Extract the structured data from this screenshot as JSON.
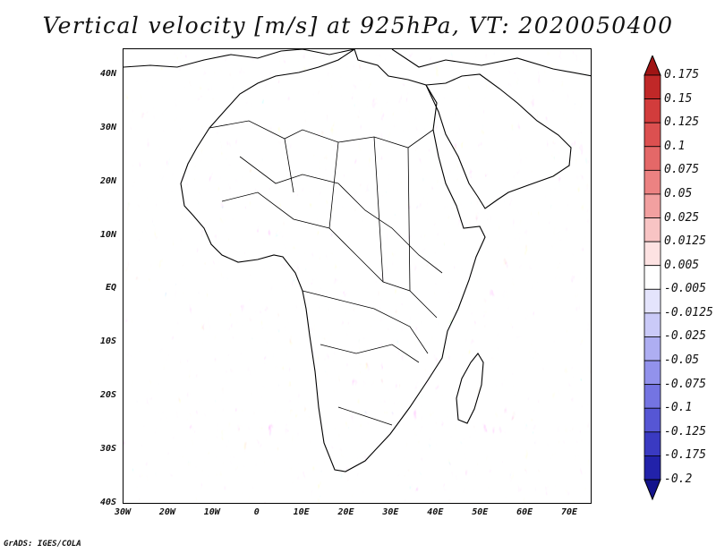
{
  "title": "Vertical velocity [m/s] at 925hPa, VT: 2020050400",
  "credit": "GrADS: IGES/COLA",
  "map": {
    "projection": "lat-lon",
    "lon_range": [
      -30,
      75
    ],
    "lat_range": [
      -40,
      45
    ],
    "lat_ticks": [
      {
        "value": 40,
        "label": "40N"
      },
      {
        "value": 30,
        "label": "30N"
      },
      {
        "value": 20,
        "label": "20N"
      },
      {
        "value": 10,
        "label": "10N"
      },
      {
        "value": 0,
        "label": "EQ"
      },
      {
        "value": -10,
        "label": "10S"
      },
      {
        "value": -20,
        "label": "20S"
      },
      {
        "value": -30,
        "label": "30S"
      },
      {
        "value": -40,
        "label": "40S"
      }
    ],
    "lon_ticks": [
      {
        "value": -30,
        "label": "30W"
      },
      {
        "value": -20,
        "label": "20W"
      },
      {
        "value": -10,
        "label": "10W"
      },
      {
        "value": 0,
        "label": "0"
      },
      {
        "value": 10,
        "label": "10E"
      },
      {
        "value": 20,
        "label": "20E"
      },
      {
        "value": 30,
        "label": "30E"
      },
      {
        "value": 40,
        "label": "40E"
      },
      {
        "value": 50,
        "label": "50E"
      },
      {
        "value": 60,
        "label": "60E"
      },
      {
        "value": 70,
        "label": "70E"
      }
    ],
    "field_variable": "vertical velocity",
    "field_level": "925hPa",
    "field_units": "m/s"
  },
  "colorbar": {
    "labels": [
      "0.175",
      "0.15",
      "0.125",
      "0.1",
      "0.075",
      "0.05",
      "0.025",
      "0.0125",
      "0.005",
      "-0.005",
      "-0.0125",
      "-0.025",
      "-0.05",
      "-0.075",
      "-0.1",
      "-0.125",
      "-0.175",
      "-0.2"
    ],
    "colors": [
      "#a01414",
      "#c02828",
      "#d23c3c",
      "#dc5050",
      "#e46868",
      "#ec8282",
      "#f2a0a0",
      "#f8c4c4",
      "#fde2e2",
      "#ffffff",
      "#e4e4fc",
      "#cacaf8",
      "#aeaef2",
      "#9292ec",
      "#7474e2",
      "#5656d4",
      "#3a3ac2",
      "#2222aa",
      "#14148c"
    ]
  }
}
